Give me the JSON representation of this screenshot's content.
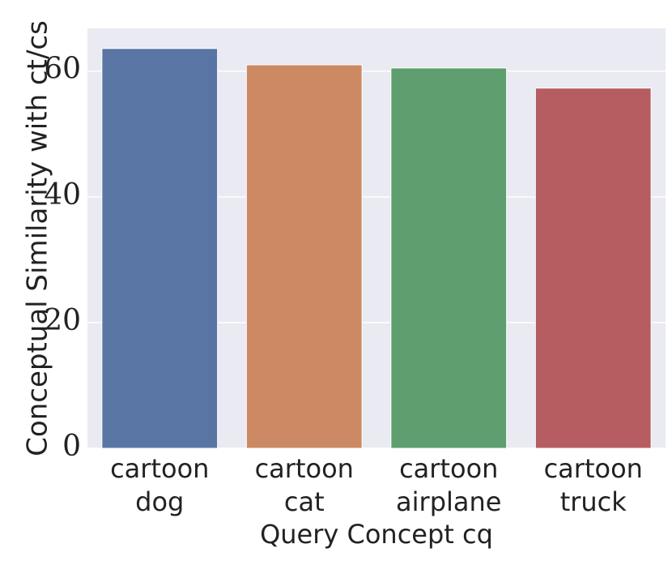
{
  "chart_data": {
    "type": "bar",
    "xlabel": "Query Concept cq",
    "ylabel": "Conceptual Similarity with ct/cs",
    "categories": [
      "cartoon\ndog",
      "cartoon\ncat",
      "cartoon\nairplane",
      "cartoon\ntruck"
    ],
    "values": [
      63.6,
      61.0,
      60.5,
      57.3
    ],
    "colors": [
      "#5975a4",
      "#cc8963",
      "#5f9e6e",
      "#b55d60"
    ],
    "ylim": [
      0,
      66.8
    ],
    "yticks": [
      0,
      20,
      40,
      60
    ],
    "grid": true
  }
}
